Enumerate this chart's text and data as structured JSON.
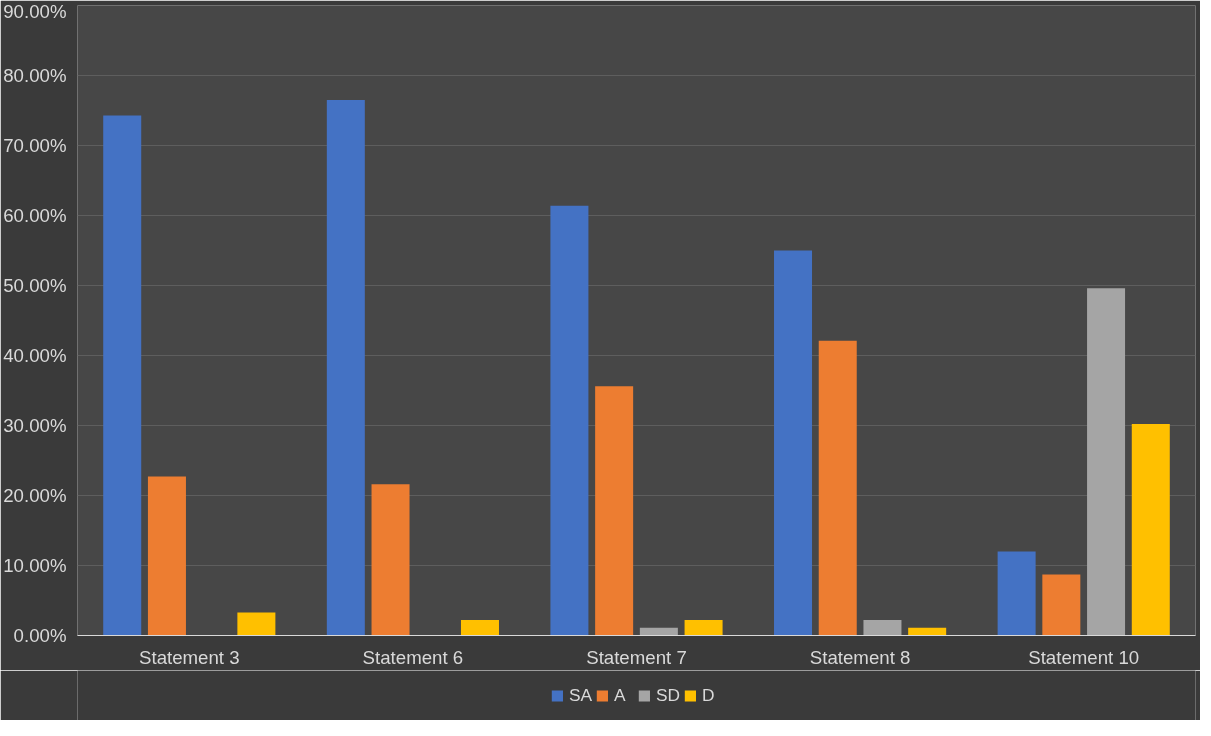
{
  "chart_data": {
    "type": "bar",
    "categories": [
      "Statement 3",
      "Statement 6",
      "Statement 7",
      "Statement 8",
      "Statement 10"
    ],
    "series": [
      {
        "name": "SA",
        "color": "#4472c4",
        "values": [
          74.3,
          76.5,
          61.4,
          55.0,
          12.0
        ]
      },
      {
        "name": "A",
        "color": "#ed7d31",
        "values": [
          22.7,
          21.6,
          35.6,
          42.1,
          8.7
        ]
      },
      {
        "name": "SD",
        "color": "#a5a5a5",
        "values": [
          0,
          0,
          1.1,
          2.2,
          49.6
        ]
      },
      {
        "name": "D",
        "color": "#ffc000",
        "values": [
          3.3,
          2.2,
          2.2,
          1.1,
          30.2
        ]
      }
    ],
    "ylim": [
      0,
      90
    ],
    "yticks": [
      {
        "value": 0,
        "label": "0.00%"
      },
      {
        "value": 10,
        "label": "10.00%"
      },
      {
        "value": 20,
        "label": "20.00%"
      },
      {
        "value": 30,
        "label": "30.00%"
      },
      {
        "value": 40,
        "label": "40.00%"
      },
      {
        "value": 50,
        "label": "50.00%"
      },
      {
        "value": 60,
        "label": "60.00%"
      },
      {
        "value": 70,
        "label": "70.00%"
      },
      {
        "value": 80,
        "label": "80.00%"
      },
      {
        "value": 90,
        "label": "90.00%"
      }
    ],
    "grid": "y",
    "legend": "bottom"
  }
}
